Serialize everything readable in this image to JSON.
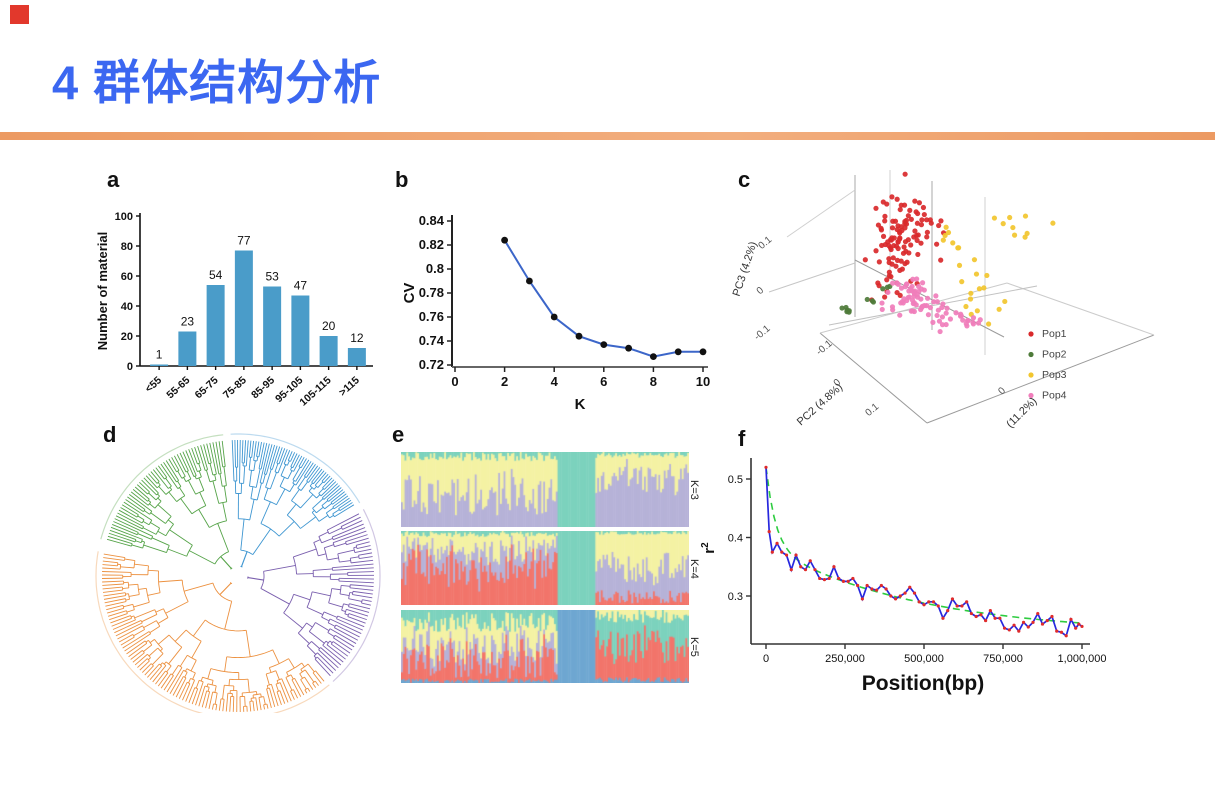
{
  "slide": {
    "title": "4 群体结构分析",
    "title_color": "#3B67F1",
    "accent_bar_color": "#EC9A62",
    "accent_bar_color_light": "#F2AE7E",
    "corner_square_color": "#E2382C",
    "background": "#FFFFFF"
  },
  "chart_data": [
    {
      "panel_label": "a",
      "type": "bar",
      "categories": [
        "<55",
        "55-65",
        "65-75",
        "75-85",
        "85-95",
        "95-105",
        "105-115",
        ">115"
      ],
      "values": [
        1,
        23,
        54,
        77,
        53,
        47,
        20,
        12
      ],
      "ylabel": "Number of material",
      "ylim": [
        0,
        100
      ],
      "yticks": [
        0,
        20,
        40,
        60,
        80,
        100
      ],
      "bar_color": "#4A9CC9",
      "axis_color": "#111111"
    },
    {
      "panel_label": "b",
      "type": "line",
      "x": [
        2,
        3,
        4,
        5,
        6,
        7,
        8,
        9,
        10
      ],
      "y": [
        0.824,
        0.79,
        0.76,
        0.744,
        0.737,
        0.734,
        0.727,
        0.731,
        0.731
      ],
      "xlabel": "K",
      "ylabel": "CV",
      "xticks": [
        0,
        2,
        4,
        6,
        8,
        10
      ],
      "ytick_values": [
        0.84,
        0.82,
        0.8,
        0.78,
        0.76,
        0.74,
        0.72
      ],
      "ytick_labels": [
        "0.84",
        "0.82",
        "0.8",
        "0.78",
        "0.76",
        "0.74",
        "0.72"
      ],
      "line_color": "#3C66C9",
      "marker_color": "#111111"
    },
    {
      "panel_label": "c",
      "type": "scatter3d",
      "axis_labels": {
        "pc3": "PC3 (4.2%)",
        "pc2": "PC2 (4.8%)",
        "pc1": "(11.2%)"
      },
      "pc3_ticks": [
        "0.1",
        "0",
        "-0.1"
      ],
      "pc2_ticks": [
        "-0.1",
        "0",
        "0.1"
      ],
      "pc1_ticks": [
        "0"
      ],
      "legend": [
        {
          "label": "Pop1",
          "color": "#D9292B"
        },
        {
          "label": "Pop2",
          "color": "#4E7B3A"
        },
        {
          "label": "Pop3",
          "color": "#F2C62E"
        },
        {
          "label": "Pop4",
          "color": "#F07EBB"
        }
      ],
      "clusters": [
        {
          "pop": "Pop1",
          "color": "#D9292B",
          "blobs": [
            [
              180,
              75,
              15,
              23,
              88
            ],
            [
              200,
              58,
              10,
              12,
              14
            ],
            [
              166,
              118,
              7,
              7,
              8
            ]
          ]
        },
        {
          "pop": "Pop2",
          "color": "#4E7B3A",
          "blobs": [
            [
              127,
              146,
              6,
              3,
              6
            ],
            [
              147,
              133,
              4,
              3,
              3
            ],
            [
              163,
              127,
              3,
              2,
              3
            ]
          ]
        },
        {
          "pop": "Pop3",
          "color": "#F2C62E",
          "blobs": [
            [
              297,
              57,
              15,
              8,
              9
            ],
            [
              246,
              108,
              16,
              16,
              11
            ],
            [
              262,
              140,
              12,
              8,
              7
            ],
            [
              226,
              78,
              7,
              9,
              4
            ]
          ]
        },
        {
          "pop": "Pop4",
          "color": "#F07EBB",
          "blobs": [
            [
              188,
              122,
              11,
              8,
              28
            ],
            [
              197,
              139,
              15,
              8,
              30
            ],
            [
              227,
              151,
              14,
              6,
              18
            ],
            [
              249,
              157,
              7,
              4,
              7
            ]
          ]
        }
      ]
    },
    {
      "panel_label": "d",
      "type": "dendrogram_circular",
      "clades": [
        {
          "name": "clade-green",
          "color": "#55A348",
          "angle_start": 195,
          "angle_end": 264,
          "leaves": 52
        },
        {
          "name": "clade-blue",
          "color": "#3E96D1",
          "angle_start": 267,
          "angle_end": 329,
          "leaves": 55
        },
        {
          "name": "clade-purple",
          "color": "#7A5FAE",
          "angle_start": 332,
          "angle_end": 408,
          "leaves": 48
        },
        {
          "name": "clade-orange",
          "color": "#EC9140",
          "angle_start": 50,
          "angle_end": 190,
          "leaves": 95
        }
      ]
    },
    {
      "panel_label": "e",
      "type": "admixture",
      "rows": [
        {
          "label": "K=3",
          "colors": {
            "teal": "#7CD2BD",
            "yellow": "#F4F2A3",
            "lav": "#B6B2D8"
          },
          "regions": [
            {
              "from": 0,
              "to": 0.545,
              "stack": [
                "teal",
                "yellow",
                "lav"
              ],
              "sample": {
                "teal": [
                  0,
                  0.12
                ],
                "yellow": [
                  0.2,
                  0.8
                ]
              },
              "rest": "lav"
            },
            {
              "from": 0.545,
              "to": 0.675,
              "solid": "teal"
            },
            {
              "from": 0.675,
              "to": 1,
              "stack": [
                "teal",
                "yellow",
                "lav"
              ],
              "sample": {
                "teal": [
                  0,
                  0.08
                ],
                "yellow": [
                  0.08,
                  0.5
                ]
              },
              "rest": "lav"
            }
          ]
        },
        {
          "label": "K=4",
          "colors": {
            "teal": "#7CD2BD",
            "yellow": "#F4F2A3",
            "lav": "#B6B2D8",
            "red": "#F2756B"
          },
          "regions": [
            {
              "from": 0,
              "to": 0.545,
              "stack": [
                "teal",
                "yellow",
                "lav",
                "red"
              ],
              "sample": {
                "teal": [
                  0,
                  0.08
                ],
                "yellow": [
                  0.03,
                  0.4
                ],
                "lav": [
                  0.05,
                  0.45
                ]
              },
              "rest": "red"
            },
            {
              "from": 0.545,
              "to": 0.675,
              "solid": "teal"
            },
            {
              "from": 0.675,
              "to": 1,
              "stack": [
                "teal",
                "yellow",
                "lav",
                "red"
              ],
              "sample": {
                "teal": [
                  0,
                  0.05
                ],
                "yellow": [
                  0.25,
                  0.7
                ],
                "red": [
                  0.02,
                  0.2
                ]
              },
              "rest": "lav"
            }
          ]
        },
        {
          "label": "K=5",
          "colors": {
            "teal": "#7CD2BD",
            "yellow": "#F4F2A3",
            "lav": "#B6B2D8",
            "red": "#F2756B",
            "blue": "#6FA7D1"
          },
          "regions": [
            {
              "from": 0,
              "to": 0.545,
              "stack": [
                "teal",
                "yellow",
                "lav",
                "red",
                "blue"
              ],
              "sample": {
                "teal": [
                  0.03,
                  0.3
                ],
                "yellow": [
                  0.1,
                  0.5
                ],
                "lav": [
                  0.05,
                  0.35
                ],
                "blue": [
                  0,
                  0.06
                ]
              },
              "rest": "red"
            },
            {
              "from": 0.545,
              "to": 0.675,
              "solid": "blue"
            },
            {
              "from": 0.675,
              "to": 1,
              "stack": [
                "yellow",
                "teal",
                "red",
                "blue"
              ],
              "sample": {
                "yellow": [
                  0,
                  0.18
                ],
                "teal": [
                  0.15,
                  0.6
                ],
                "blue": [
                  0,
                  0.08
                ]
              },
              "rest": "red"
            }
          ]
        }
      ]
    },
    {
      "panel_label": "f",
      "type": "line",
      "xlabel": "Position(bp)",
      "ylabel": {
        "base": "r",
        "sup": "2"
      },
      "xticks": [
        [
          0,
          "0"
        ],
        [
          250000,
          "250,000"
        ],
        [
          500000,
          "500,000"
        ],
        [
          750000,
          "750,000"
        ],
        [
          1000000,
          "1,000,000"
        ]
      ],
      "yticks": [
        "0.3",
        "0.4",
        "0.5"
      ],
      "ylim": [
        0.22,
        0.53
      ],
      "series": [
        {
          "name": "observed",
          "line_color": "#2727DE",
          "marker_color": "#E02B2B",
          "points": [
            [
              0,
              0.52
            ],
            [
              10000,
              0.41
            ],
            [
              20000,
              0.375
            ],
            [
              35000,
              0.39
            ],
            [
              50000,
              0.375
            ],
            [
              65000,
              0.37
            ],
            [
              80000,
              0.345
            ],
            [
              95000,
              0.37
            ],
            [
              110000,
              0.35
            ],
            [
              125000,
              0.345
            ],
            [
              140000,
              0.36
            ],
            [
              155000,
              0.345
            ],
            [
              170000,
              0.33
            ],
            [
              185000,
              0.328
            ],
            [
              200000,
              0.33
            ],
            [
              215000,
              0.35
            ],
            [
              230000,
              0.33
            ],
            [
              245000,
              0.325
            ],
            [
              260000,
              0.325
            ],
            [
              275000,
              0.33
            ],
            [
              290000,
              0.318
            ],
            [
              305000,
              0.295
            ],
            [
              320000,
              0.318
            ],
            [
              335000,
              0.312
            ],
            [
              350000,
              0.31
            ],
            [
              365000,
              0.318
            ],
            [
              380000,
              0.312
            ],
            [
              395000,
              0.3
            ],
            [
              410000,
              0.295
            ],
            [
              425000,
              0.3
            ],
            [
              440000,
              0.305
            ],
            [
              455000,
              0.315
            ],
            [
              470000,
              0.305
            ],
            [
              485000,
              0.29
            ],
            [
              500000,
              0.285
            ],
            [
              515000,
              0.29
            ],
            [
              530000,
              0.29
            ],
            [
              545000,
              0.283
            ],
            [
              560000,
              0.262
            ],
            [
              575000,
              0.275
            ],
            [
              590000,
              0.295
            ],
            [
              605000,
              0.283
            ],
            [
              620000,
              0.283
            ],
            [
              635000,
              0.29
            ],
            [
              650000,
              0.27
            ],
            [
              665000,
              0.265
            ],
            [
              680000,
              0.268
            ],
            [
              695000,
              0.258
            ],
            [
              710000,
              0.275
            ],
            [
              725000,
              0.262
            ],
            [
              740000,
              0.262
            ],
            [
              755000,
              0.245
            ],
            [
              770000,
              0.242
            ],
            [
              785000,
              0.25
            ],
            [
              800000,
              0.24
            ],
            [
              815000,
              0.255
            ],
            [
              830000,
              0.247
            ],
            [
              845000,
              0.255
            ],
            [
              860000,
              0.27
            ],
            [
              875000,
              0.252
            ],
            [
              890000,
              0.258
            ],
            [
              905000,
              0.265
            ],
            [
              920000,
              0.24
            ],
            [
              935000,
              0.238
            ],
            [
              950000,
              0.232
            ],
            [
              965000,
              0.26
            ],
            [
              980000,
              0.245
            ],
            [
              990000,
              0.252
            ],
            [
              1000000,
              0.248
            ]
          ]
        },
        {
          "name": "fitted",
          "line_color": "#2ECC40",
          "style": "dashed",
          "params": {
            "base": 0.235,
            "a1": 0.15,
            "s1": 480000,
            "a2": 0.135,
            "s2": 30000
          }
        }
      ]
    }
  ]
}
